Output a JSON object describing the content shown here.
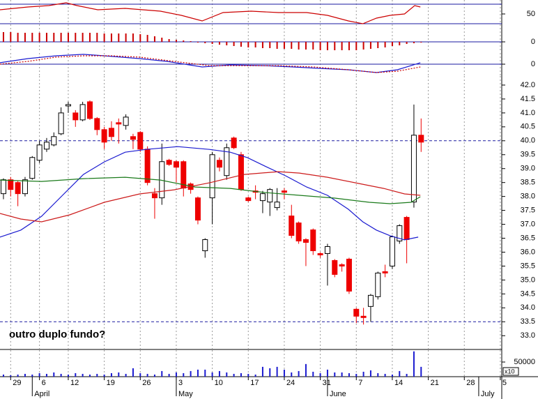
{
  "chart_data": [
    {
      "type": "line",
      "xlim": [
        -0.48,
        69.2
      ],
      "ylim": [
        30,
        78.6
      ],
      "yticks": [
        50
      ],
      "reference_lines": [
        70,
        30
      ],
      "reference_color": "#1a1aa0",
      "series": [
        {
          "color": "#cc0000",
          "x": [
            -0.5,
            3.4,
            6.3,
            8.7,
            10.2,
            13.1,
            16.9,
            21.8,
            24.7,
            27.6,
            30.5,
            34.4,
            38.2,
            42.1,
            45.0,
            47.9,
            49.9,
            51.8,
            53.7,
            55.7,
            57.1,
            57.9
          ],
          "values": [
            58.6,
            64.3,
            67.1,
            72.9,
            67.1,
            58.6,
            61.4,
            55.7,
            47.1,
            35.7,
            52.9,
            55.7,
            52.9,
            52.9,
            47.1,
            35.7,
            30,
            41.4,
            47.1,
            50,
            67.1,
            64.3
          ]
        }
      ]
    },
    {
      "type": "bar",
      "xlim": [
        -0.48,
        69.2
      ],
      "ylim": [
        -0.6,
        1.0
      ],
      "yticks": [
        0
      ],
      "reference_lines": [
        0
      ],
      "reference_color": "#1a1aa0",
      "color": "#cc0000",
      "values": [
        0.56,
        0.56,
        0.52,
        0.52,
        0.52,
        0.52,
        0.52,
        0.52,
        0.52,
        0.52,
        0.52,
        0.52,
        0.52,
        0.52,
        0.48,
        0.48,
        0.48,
        0.48,
        0.48,
        0.44,
        0.4,
        0.32,
        0.24,
        0.16,
        0.12,
        0.08,
        0.04,
        -0.04,
        -0.08,
        -0.12,
        -0.16,
        -0.2,
        -0.24,
        -0.28,
        -0.32,
        -0.32,
        -0.36,
        -0.36,
        -0.4,
        -0.4,
        -0.4,
        -0.44,
        -0.44,
        -0.44,
        -0.48,
        -0.48,
        -0.48,
        -0.48,
        -0.48,
        -0.48,
        -0.44,
        -0.4,
        -0.36,
        -0.32,
        -0.24,
        -0.2,
        -0.12,
        -0.08,
        -0.04
      ]
    },
    {
      "type": "line",
      "xlim": [
        -0.48,
        69.2
      ],
      "ylim": [
        -1,
        1
      ],
      "yticks": [
        0
      ],
      "reference_lines": [
        0
      ],
      "reference_color": "#1a1aa0",
      "series": [
        {
          "color": "#1a1ad0",
          "x": [
            -0.5,
            3.4,
            7.3,
            11.1,
            14.0,
            18.9,
            22.7,
            27.6,
            31.5,
            36.3,
            40.2,
            44.1,
            47.9,
            51.8,
            54.7,
            56.6,
            57.9
          ],
          "values": [
            0.13,
            0.5,
            0.75,
            0.88,
            0.75,
            0.5,
            0.25,
            -0.25,
            -0.06,
            -0.13,
            -0.25,
            -0.38,
            -0.5,
            -0.75,
            -0.5,
            -0.13,
            0.13
          ]
        },
        {
          "color": "#cc0000",
          "dashed": true,
          "x": [
            -0.5,
            3.4,
            7.3,
            11.1,
            15.0,
            18.9,
            23.7,
            28.6,
            33.4,
            38.2,
            43.1,
            47.9,
            51.8,
            54.7,
            57.9
          ],
          "values": [
            0,
            0.25,
            0.63,
            0.75,
            0.75,
            0.63,
            0.25,
            -0.13,
            -0.13,
            -0.13,
            -0.25,
            -0.5,
            -0.75,
            -0.63,
            -0.25
          ]
        }
      ]
    },
    {
      "type": "candlestick",
      "xlim": [
        -0.48,
        69.2
      ],
      "ylim": [
        32.53,
        42.55
      ],
      "up_color": "#ffffff",
      "down_color": "#ee0000",
      "yticks": [
        {
          "value": 42,
          "label": "42.0"
        },
        41.5,
        {
          "value": 41,
          "label": "41.0"
        },
        40.5,
        {
          "value": 40,
          "label": "40.0"
        },
        39.5,
        {
          "value": 39,
          "label": "39.0"
        },
        38.5,
        {
          "value": 38,
          "label": "38.0"
        },
        37.5,
        {
          "value": 37,
          "label": "37.0"
        },
        36.5,
        {
          "value": 36,
          "label": "36.0"
        },
        35.5,
        {
          "value": 35,
          "label": "35.0"
        },
        34.5,
        {
          "value": 34,
          "label": "34.0"
        },
        33.5,
        {
          "value": 33,
          "label": "33.0"
        }
      ],
      "reference_lines": [
        40,
        33.5
      ],
      "reference_color": "#1a1aa0",
      "reference_dashed": true,
      "annotation": "outro duplo fundo?",
      "open": [
        38.1,
        38.6,
        38.5,
        38.1,
        38.65,
        39.3,
        39.7,
        39.85,
        40.25,
        41.25,
        41.0,
        40.75,
        41.4,
        40.8,
        40.4,
        40.45,
        40.65,
        40.55,
        40.15,
        40.3,
        39.7,
        38.1,
        37.95,
        39.3,
        39.25,
        39.25,
        38.45,
        37.95,
        36.05,
        37.95,
        39.3,
        38.75,
        40.1,
        39.5,
        37.95,
        38.2,
        37.85,
        37.8,
        37.6,
        38.2,
        37.3,
        37.05,
        36.45,
        36.8,
        35.95,
        35.95,
        35.7,
        35.55,
        35.75,
        33.95,
        33.7,
        34.05,
        34.4,
        35.3,
        35.5,
        36.4,
        37.25,
        37.8,
        40.2
      ],
      "high": [
        38.65,
        38.7,
        38.55,
        38.7,
        39.45,
        40.0,
        40.1,
        40.3,
        41.2,
        41.4,
        41.1,
        41.4,
        41.45,
        40.85,
        40.5,
        40.7,
        40.8,
        40.95,
        40.25,
        40.35,
        39.8,
        38.3,
        39.9,
        39.35,
        39.3,
        39.3,
        38.5,
        38.0,
        36.5,
        39.6,
        39.4,
        39.9,
        40.15,
        39.6,
        38.0,
        38.4,
        38.2,
        38.3,
        38.3,
        38.3,
        37.7,
        37.1,
        36.5,
        36.85,
        36.0,
        36.3,
        35.75,
        35.6,
        35.8,
        34.0,
        34.0,
        34.5,
        35.3,
        35.55,
        36.6,
        37.0,
        37.3,
        41.3,
        40.8
      ],
      "low": [
        37.9,
        38.0,
        37.65,
        38.0,
        38.6,
        39.2,
        39.6,
        39.8,
        40.2,
        41.0,
        40.5,
        40.7,
        40.75,
        40.2,
        39.7,
        40.0,
        39.9,
        40.4,
        39.7,
        39.6,
        38.4,
        37.2,
        37.7,
        39.1,
        38.5,
        38.0,
        38.1,
        37.0,
        35.8,
        37.0,
        38.9,
        38.6,
        39.7,
        38.2,
        37.8,
        37.9,
        37.4,
        37.3,
        37.5,
        37.9,
        36.5,
        36.3,
        35.5,
        35.9,
        35.8,
        34.8,
        35.1,
        35.3,
        34.5,
        33.45,
        33.4,
        33.5,
        34.3,
        35.1,
        35.4,
        36.3,
        35.6,
        37.6,
        39.6
      ],
      "close": [
        38.6,
        38.25,
        38.1,
        38.6,
        39.4,
        39.85,
        39.95,
        40.15,
        41.0,
        41.3,
        40.75,
        41.3,
        40.8,
        40.4,
        39.95,
        40.15,
        40.6,
        40.85,
        40.05,
        39.7,
        38.5,
        37.95,
        39.25,
        39.15,
        39.05,
        38.3,
        38.25,
        37.15,
        36.45,
        39.5,
        39.05,
        39.75,
        39.75,
        38.25,
        37.85,
        38.15,
        38.1,
        38.25,
        37.8,
        38.15,
        36.6,
        36.4,
        36.35,
        36.05,
        35.9,
        36.2,
        35.2,
        35.5,
        34.6,
        33.7,
        33.65,
        34.45,
        35.25,
        35.25,
        36.55,
        36.95,
        36.45,
        40.2,
        39.95
      ],
      "series": [
        {
          "color": "#1a1ad0",
          "x": [
            -0.5,
            2.4,
            5.3,
            8.2,
            11.1,
            14.0,
            16.9,
            19.8,
            24.2,
            28.6,
            31.5,
            33.9,
            36.3,
            39.2,
            42.1,
            45.0,
            47.9,
            49.9,
            51.8,
            53.7,
            55.7,
            57.6
          ],
          "values": [
            36.54,
            36.79,
            37.29,
            38.04,
            38.79,
            39.24,
            39.59,
            39.69,
            39.79,
            39.69,
            39.59,
            39.39,
            39.09,
            38.74,
            38.34,
            38.04,
            37.54,
            37.09,
            36.79,
            36.59,
            36.44,
            36.54
          ]
        },
        {
          "color": "#1a7a1a",
          "x": [
            -0.5,
            5.3,
            11.1,
            16.9,
            21.8,
            26.6,
            31.5,
            36.3,
            41.1,
            46.0,
            50.8,
            53.7,
            56.6,
            57.9
          ],
          "values": [
            38.59,
            38.54,
            38.64,
            38.69,
            38.59,
            38.34,
            38.29,
            38.14,
            38.04,
            37.94,
            37.79,
            37.74,
            37.79,
            37.99
          ]
        },
        {
          "color": "#cc1a1a",
          "x": [
            -0.5,
            2.4,
            5.3,
            9.2,
            14.0,
            18.9,
            23.7,
            28.6,
            33.4,
            38.2,
            41.1,
            45.0,
            48.9,
            52.8,
            55.7,
            57.9
          ],
          "values": [
            37.39,
            37.19,
            37.09,
            37.34,
            37.79,
            38.09,
            38.24,
            38.49,
            38.79,
            38.89,
            38.84,
            38.69,
            38.49,
            38.29,
            38.09,
            38.04
          ]
        }
      ]
    },
    {
      "type": "bar",
      "xlim": [
        -0.48,
        69.2
      ],
      "ylim": [
        0,
        90500
      ],
      "yticks": [
        50000
      ],
      "unit_label": "x10",
      "color": "#1a1ad0",
      "grid": true,
      "values": [
        7200,
        4800,
        7200,
        9600,
        7200,
        12000,
        9600,
        14400,
        9600,
        7200,
        12000,
        9600,
        7200,
        9600,
        7200,
        12000,
        14400,
        9600,
        28800,
        12000,
        9600,
        7200,
        19200,
        9600,
        14400,
        12000,
        19200,
        24000,
        24000,
        14400,
        19200,
        14400,
        9600,
        12000,
        9600,
        7200,
        33600,
        28800,
        33600,
        24000,
        14400,
        19200,
        43200,
        16800,
        12000,
        24000,
        14400,
        14400,
        12000,
        9600,
        16800,
        21600,
        12000,
        9600,
        7200,
        19200,
        9600,
        86400,
        33600
      ],
      "xticks": [
        {
          "value": 1,
          "label": "29"
        },
        {
          "value": 5,
          "label": "6"
        },
        {
          "value": 9,
          "label": "12"
        },
        {
          "value": 14,
          "label": "19"
        },
        {
          "value": 19,
          "label": "26"
        },
        {
          "value": 24,
          "label": "3"
        },
        {
          "value": 29,
          "label": "10"
        },
        {
          "value": 34,
          "label": "17"
        },
        {
          "value": 39,
          "label": "24"
        },
        {
          "value": 44,
          "label": "31"
        },
        {
          "value": 49,
          "label": "7"
        },
        {
          "value": 54,
          "label": "14"
        },
        {
          "value": 59,
          "label": "21"
        },
        {
          "value": 64,
          "label": "28"
        },
        {
          "value": 69,
          "label": "5"
        }
      ],
      "month_ticks": [
        {
          "value": 4,
          "label": "April"
        },
        {
          "value": 24,
          "label": "May"
        },
        {
          "value": 45,
          "label": "June"
        },
        {
          "value": 66,
          "label": "July"
        }
      ]
    }
  ]
}
